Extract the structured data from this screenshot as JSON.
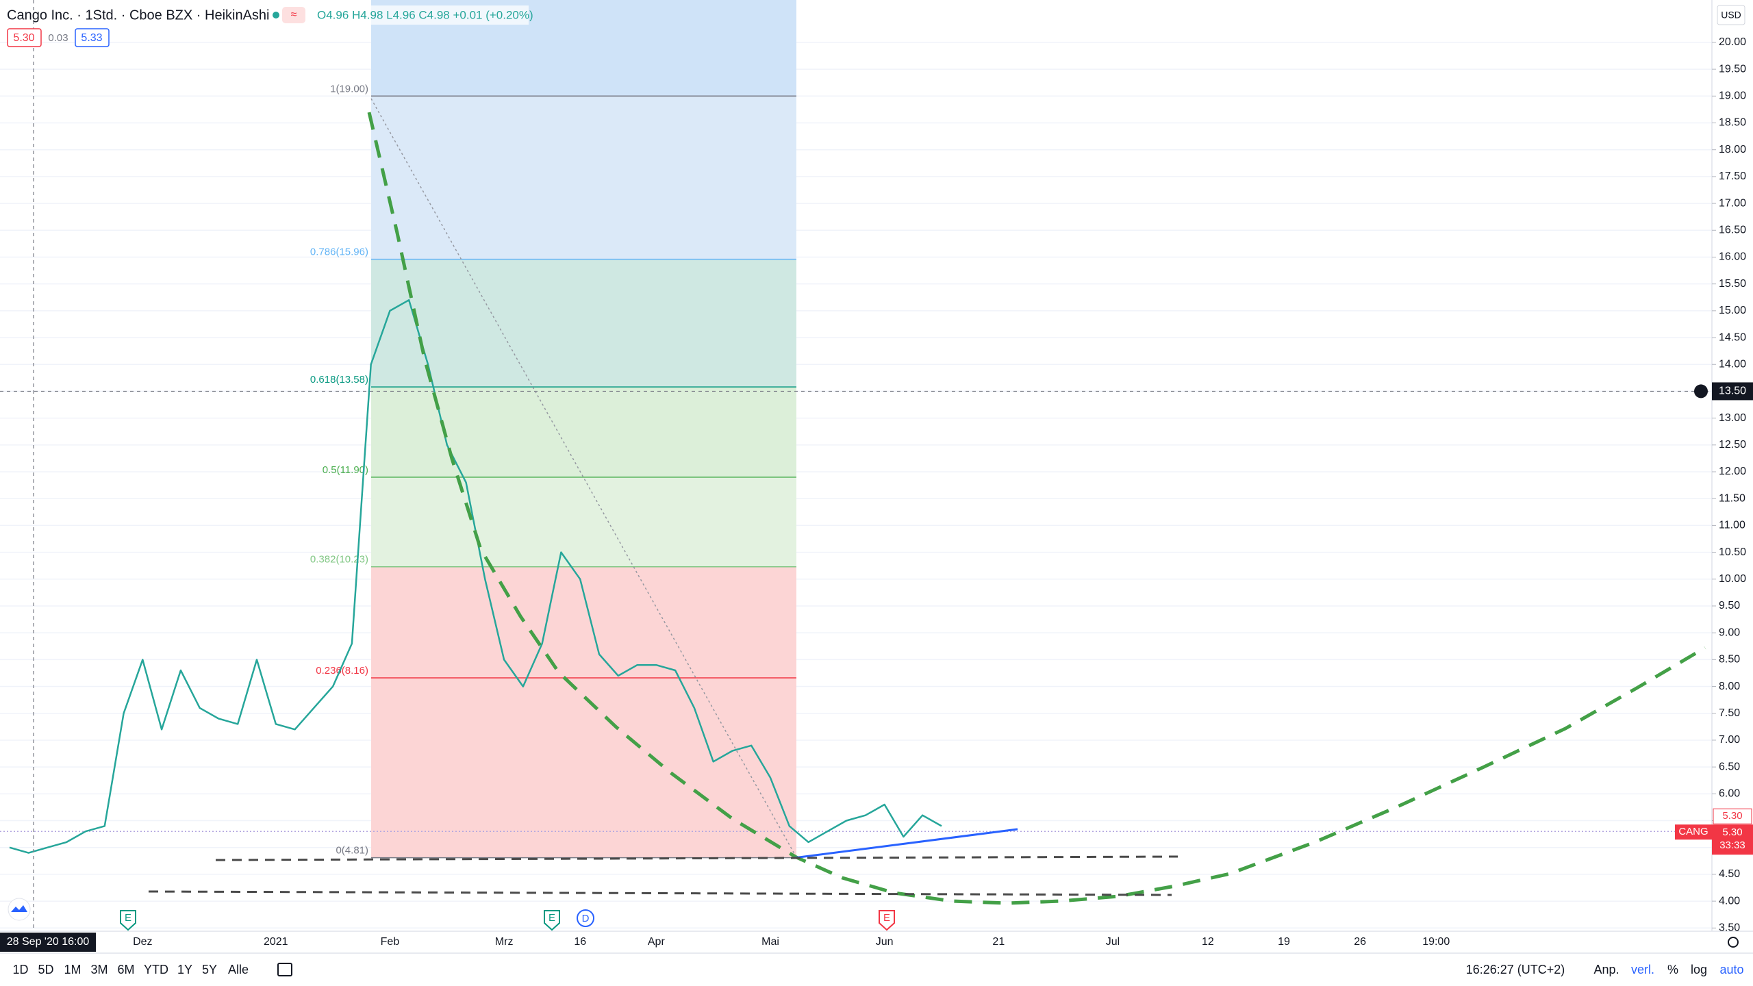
{
  "header": {
    "symbol": "Cango Inc. · 1Std. · Cboe BZX · HeikinAshi",
    "ohlc": "O4.96 H4.98 L4.96 C4.98 +0.01 (+0.20%)",
    "bid": "5.30",
    "spread": "0.03",
    "ask": "5.33"
  },
  "chart_data": {
    "type": "line",
    "categories": [
      null,
      null,
      null,
      null,
      null,
      null,
      null,
      "Dez",
      null,
      null,
      null,
      null,
      null,
      null,
      "2021",
      null,
      null,
      null,
      null,
      null,
      "Feb",
      null,
      null,
      null,
      null,
      null,
      "Mrz",
      null,
      null,
      null,
      "16",
      null,
      null,
      null,
      "Apr",
      null,
      null,
      null,
      null,
      null,
      "Mai",
      null,
      null,
      null,
      null,
      null,
      "Jun",
      null,
      null,
      null,
      null,
      null,
      "21",
      null,
      null,
      null,
      null,
      null,
      "Jul",
      null,
      null,
      null,
      null,
      "12",
      null,
      null,
      null,
      "19",
      null,
      null,
      null,
      "26",
      null,
      null,
      null,
      "19:00",
      null,
      null,
      null,
      null,
      null,
      null,
      null,
      null,
      null,
      null,
      null,
      null,
      null,
      null
    ],
    "series": [
      {
        "name": "CANG",
        "color": "#26a69a",
        "values": [
          5.0,
          4.9,
          5.0,
          5.1,
          5.3,
          5.4,
          7.5,
          8.5,
          7.2,
          8.3,
          7.6,
          7.4,
          7.3,
          8.5,
          7.3,
          7.2,
          7.6,
          8.0,
          8.8,
          14.0,
          15.0,
          15.2,
          14.0,
          12.5,
          11.8,
          10.0,
          8.5,
          8.0,
          8.8,
          10.5,
          10.0,
          8.6,
          8.2,
          8.4,
          8.4,
          8.3,
          7.6,
          6.6,
          6.8,
          6.9,
          6.3,
          5.4,
          5.1,
          5.3,
          5.5,
          5.6,
          5.8,
          5.2,
          5.6,
          5.4,
          null,
          null,
          null,
          null,
          null,
          null,
          null,
          null,
          null,
          null,
          null,
          null,
          null,
          null,
          null,
          null,
          null,
          null,
          null,
          null,
          null,
          null,
          null,
          null,
          null,
          null,
          null,
          null,
          null,
          null,
          null,
          null,
          null,
          null,
          null,
          null,
          null,
          null,
          null,
          null
        ]
      }
    ],
    "ylim": [
      3.44,
      20.79
    ],
    "yticks": [
      {
        "value": 3.5,
        "label": "3.50"
      },
      {
        "value": 4,
        "label": "4.00"
      },
      {
        "value": 4.5,
        "label": "4.50"
      },
      {
        "value": 5,
        "label": "5.00"
      },
      {
        "value": 5.5,
        "label": "5.50"
      },
      {
        "value": 6,
        "label": "6.00"
      },
      {
        "value": 6.5,
        "label": "6.50"
      },
      {
        "value": 7,
        "label": "7.00"
      },
      {
        "value": 7.5,
        "label": "7.50"
      },
      {
        "value": 8,
        "label": "8.00"
      },
      {
        "value": 8.5,
        "label": "8.50"
      },
      {
        "value": 9,
        "label": "9.00"
      },
      {
        "value": 9.5,
        "label": "9.50"
      },
      {
        "value": 10,
        "label": "10.00"
      },
      {
        "value": 10.5,
        "label": "10.50"
      },
      {
        "value": 11,
        "label": "11.00"
      },
      {
        "value": 11.5,
        "label": "11.50"
      },
      {
        "value": 12,
        "label": "12.00"
      },
      {
        "value": 12.5,
        "label": "12.50"
      },
      {
        "value": 13,
        "label": "13.00"
      },
      {
        "value": 13.5,
        "label": "13.50"
      },
      {
        "value": 14,
        "label": "14.00"
      },
      {
        "value": 14.5,
        "label": "14.50"
      },
      {
        "value": 15,
        "label": "15.00"
      },
      {
        "value": 15.5,
        "label": "15.50"
      },
      {
        "value": 16,
        "label": "16.00"
      },
      {
        "value": 16.5,
        "label": "16.50"
      },
      {
        "value": 17,
        "label": "17.00"
      },
      {
        "value": 17.5,
        "label": "17.50"
      },
      {
        "value": 18,
        "label": "18.00"
      },
      {
        "value": 18.5,
        "label": "18.50"
      },
      {
        "value": 19,
        "label": "19.00"
      },
      {
        "value": 19.5,
        "label": "19.50"
      },
      {
        "value": 20,
        "label": "20.00"
      }
    ],
    "grid": true,
    "currency": "USD",
    "crosshair": {
      "value": 13.5,
      "label": "13.50",
      "time_label": "28 Sep '20  16:00"
    },
    "last_price": {
      "value": 5.3,
      "label": "5.30",
      "symbol": "CANG",
      "countdown": "33:33"
    },
    "fib": {
      "top_color": "#cfe3f8",
      "levels": [
        {
          "value": 19.0,
          "label": "1(19.00)",
          "color": "#787b86",
          "fill": "#e1e1e3"
        },
        {
          "value": 15.96,
          "label": "0.786(15.96)",
          "color": "#64b5f6",
          "fill": "#dbe9f8"
        },
        {
          "value": 13.58,
          "label": "0.618(13.58)",
          "color": "#089981",
          "fill": "#cfe8e2"
        },
        {
          "value": 11.9,
          "label": "0.5(11.90)",
          "color": "#4caf50",
          "fill": "#dcefd9"
        },
        {
          "value": 10.23,
          "label": "0.382(10.23)",
          "color": "#81c784",
          "fill": "#e3f2e0"
        },
        {
          "value": 8.16,
          "label": "0.236(8.16)",
          "color": "#f23645",
          "fill": "#fcd5d5"
        },
        {
          "value": 4.81,
          "label": "0(4.81)",
          "color": "#787b86",
          "fill": "#fcd5d5"
        }
      ]
    }
  },
  "events": [
    "E",
    "E",
    "D",
    "E"
  ],
  "toolbar": {
    "ranges": [
      "1D",
      "5D",
      "1M",
      "3M",
      "6M",
      "YTD",
      "1Y",
      "5Y",
      "Alle"
    ],
    "clock": "16:26:27 (UTC+2)",
    "options": [
      "Anp.",
      "verl.",
      "%",
      "log",
      "auto"
    ]
  }
}
